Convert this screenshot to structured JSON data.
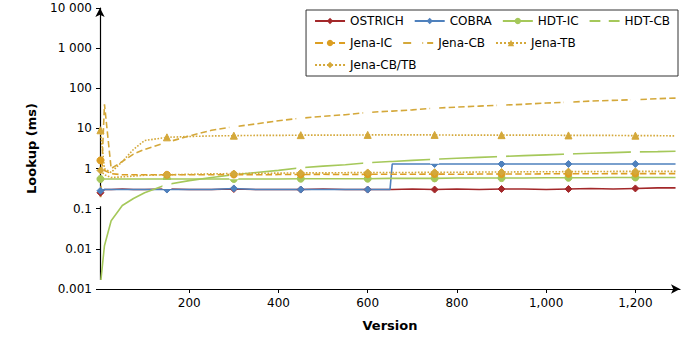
{
  "chart_data": {
    "type": "line",
    "x_label": "Version",
    "y_label": "Lookup (ms)",
    "log": "y",
    "grid": false,
    "legend": "upper right",
    "xlim": [
      0,
      1300
    ],
    "xticks": [
      200,
      400,
      600,
      800,
      {
        "value": 1000,
        "label": "1,000"
      },
      {
        "value": 1200,
        "label": "1,200"
      }
    ],
    "ylim": [
      0.001,
      10000
    ],
    "yticks": [
      0.001,
      0.01,
      0.1,
      1,
      10,
      100,
      {
        "value": 1000,
        "label": "1 000"
      },
      {
        "value": 10000,
        "label": "10 000"
      }
    ],
    "x": [
      1,
      10,
      25,
      50,
      75,
      100,
      150,
      200,
      250,
      300,
      350,
      400,
      450,
      500,
      550,
      600,
      650,
      655,
      700,
      750,
      800,
      850,
      900,
      950,
      1000,
      1050,
      1100,
      1150,
      1200,
      1250,
      1290
    ],
    "series": [
      {
        "name": "OSTRICH",
        "color": "#a3282a",
        "marker": "diamond",
        "line_style": "solid",
        "values": [
          0.25,
          0.3,
          0.3,
          0.31,
          0.3,
          0.3,
          0.31,
          0.3,
          0.3,
          0.31,
          0.3,
          0.3,
          0.3,
          0.31,
          0.3,
          0.3,
          0.3,
          0.3,
          0.31,
          0.3,
          0.31,
          0.3,
          0.31,
          0.31,
          0.3,
          0.31,
          0.32,
          0.31,
          0.32,
          0.33,
          0.33
        ]
      },
      {
        "name": "COBRA",
        "color": "#4f81bd",
        "marker": "diamond",
        "line_style": "solid",
        "values": [
          0.28,
          0.3,
          0.3,
          0.3,
          0.3,
          0.3,
          0.3,
          0.3,
          0.3,
          0.32,
          0.3,
          0.3,
          0.3,
          0.3,
          0.3,
          0.3,
          0.3,
          1.3,
          1.3,
          1.3,
          1.3,
          1.3,
          1.3,
          1.3,
          1.3,
          1.3,
          1.3,
          1.3,
          1.3,
          1.3,
          1.3
        ]
      },
      {
        "name": "HDT-IC",
        "color": "#a5c85a",
        "marker": "circle",
        "line_style": "solid",
        "values": [
          0.55,
          0.55,
          0.55,
          0.55,
          0.55,
          0.55,
          0.55,
          0.55,
          0.55,
          0.55,
          0.55,
          0.55,
          0.56,
          0.56,
          0.56,
          0.56,
          0.57,
          0.57,
          0.57,
          0.57,
          0.58,
          0.58,
          0.58,
          0.58,
          0.59,
          0.59,
          0.59,
          0.6,
          0.6,
          0.6,
          0.6
        ]
      },
      {
        "name": "HDT-CB",
        "color": "#a5c85a",
        "marker": "open_square",
        "line_style": "solid",
        "values": [
          0.0013,
          0.012,
          0.05,
          0.12,
          0.18,
          0.25,
          0.4,
          0.5,
          0.6,
          0.7,
          0.8,
          0.9,
          1.05,
          1.15,
          1.25,
          1.4,
          1.5,
          1.5,
          1.6,
          1.7,
          1.8,
          1.9,
          2.0,
          2.1,
          2.2,
          2.3,
          2.4,
          2.5,
          2.6,
          2.65,
          2.7
        ]
      },
      {
        "name": "Jena-IC",
        "color": "#dc9e22",
        "marker": "circle",
        "line_style": "dashed",
        "values": [
          1.6,
          0.9,
          0.75,
          0.7,
          0.7,
          0.7,
          0.7,
          0.7,
          0.7,
          0.71,
          0.7,
          0.71,
          0.71,
          0.72,
          0.71,
          0.72,
          0.72,
          0.72,
          0.72,
          0.73,
          0.72,
          0.73,
          0.73,
          0.73,
          0.74,
          0.74,
          0.74,
          0.75,
          0.75,
          0.75,
          0.75
        ]
      },
      {
        "name": "Jena-CB",
        "color": "#d4a83a",
        "marker": "open_square",
        "line_style": "dashed",
        "values": [
          0.15,
          40,
          1,
          1.5,
          2.3,
          3,
          4.5,
          6.5,
          9,
          11,
          13,
          15.5,
          18,
          20,
          22,
          25,
          27,
          27,
          29,
          32,
          34,
          36,
          38,
          40,
          43,
          45,
          48,
          50,
          52,
          55,
          57
        ]
      },
      {
        "name": "Jena-TB",
        "color": "#d4a83a",
        "marker": "triangle",
        "line_style": "dotted",
        "values": [
          9,
          1,
          0.8,
          1.5,
          3,
          5,
          6,
          6.3,
          6.5,
          6.6,
          6.7,
          6.7,
          6.8,
          6.8,
          6.8,
          6.9,
          6.9,
          6.9,
          6.9,
          6.9,
          6.8,
          6.8,
          6.8,
          6.8,
          6.8,
          6.7,
          6.7,
          6.7,
          6.6,
          6.6,
          6.5
        ]
      },
      {
        "name": "Jena-CB/TB",
        "color": "#d4a83a",
        "marker": "diamond",
        "line_style": "dotted",
        "values": [
          0.9,
          0.7,
          0.6,
          0.62,
          0.65,
          0.68,
          0.7,
          0.72,
          0.74,
          0.75,
          0.76,
          0.77,
          0.78,
          0.78,
          0.79,
          0.8,
          0.8,
          0.8,
          0.8,
          0.81,
          0.81,
          0.82,
          0.82,
          0.83,
          0.83,
          0.84,
          0.84,
          0.85,
          0.85,
          0.85,
          0.85
        ]
      }
    ]
  }
}
